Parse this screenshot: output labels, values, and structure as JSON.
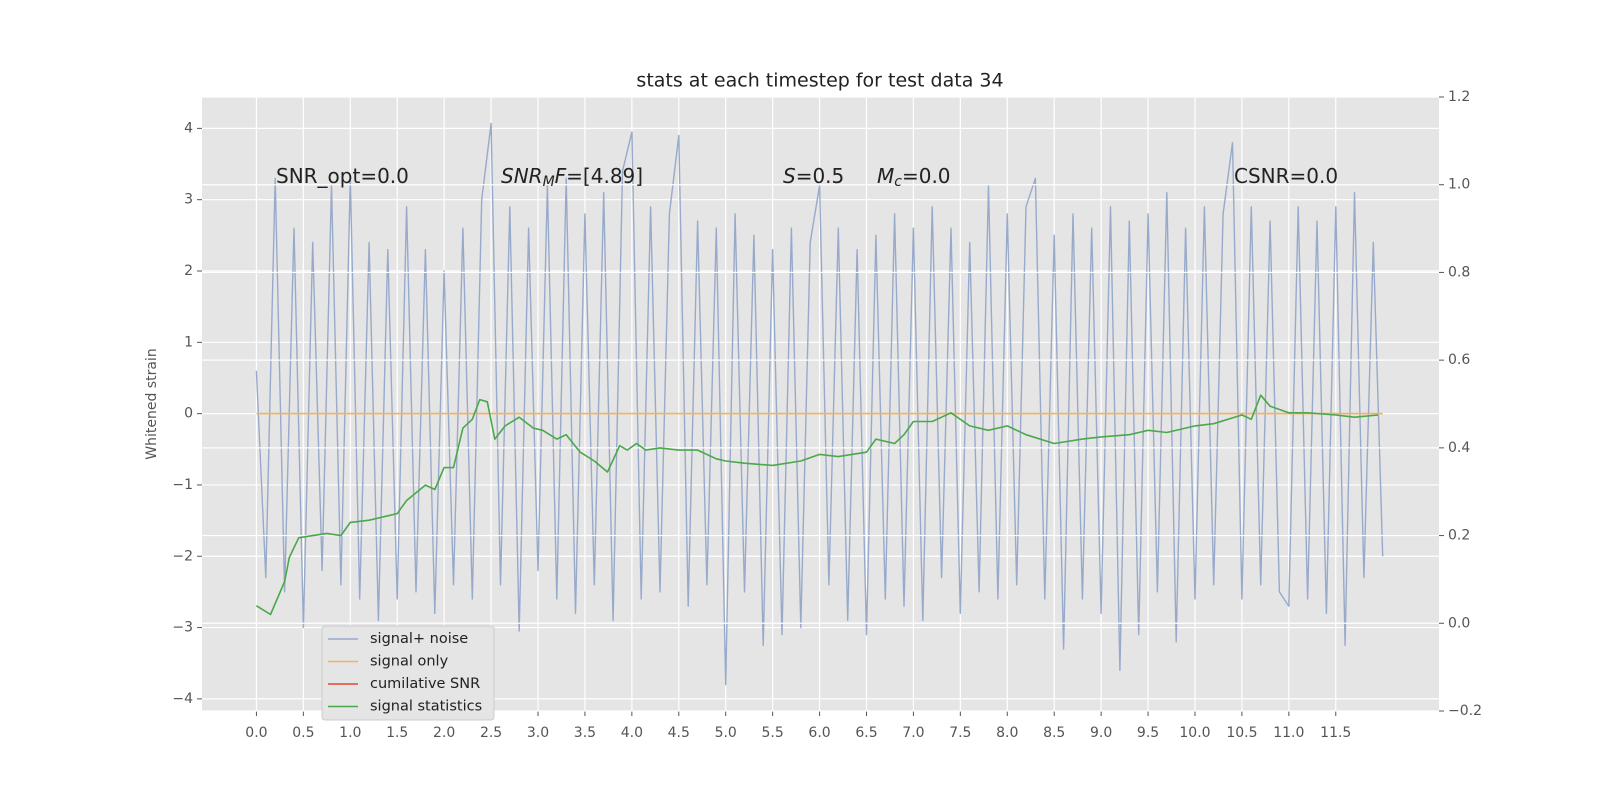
{
  "chart_data": {
    "type": "line",
    "title": "stats at each timestep for test data 34",
    "y_label": "Whitened strain",
    "xlim": [
      -0.58,
      12.6
    ],
    "ylim": [
      -4.17,
      4.44
    ],
    "y2lim": [
      -0.2,
      1.2
    ],
    "xticks": [
      {
        "value": 0,
        "label": "0.0"
      },
      0.5,
      {
        "value": 1,
        "label": "1.0"
      },
      1.5,
      {
        "value": 2,
        "label": "2.0"
      },
      2.5,
      {
        "value": 3,
        "label": "3.0"
      },
      3.5,
      {
        "value": 4,
        "label": "4.0"
      },
      4.5,
      {
        "value": 5,
        "label": "5.0"
      },
      5.5,
      {
        "value": 6,
        "label": "6.0"
      },
      6.5,
      {
        "value": 7,
        "label": "7.0"
      },
      7.5,
      {
        "value": 8,
        "label": "8.0"
      },
      8.5,
      {
        "value": 9,
        "label": "9.0"
      },
      9.5,
      {
        "value": 10,
        "label": "10.0"
      },
      10.5,
      {
        "value": 11,
        "label": "11.0"
      },
      11.5
    ],
    "yticks": [
      {
        "value": -4,
        "label": "−4"
      },
      {
        "value": -3,
        "label": "−3"
      },
      {
        "value": -2,
        "label": "−2"
      },
      {
        "value": -1,
        "label": "−1"
      },
      0,
      1,
      2,
      3,
      4
    ],
    "y2ticks": [
      {
        "value": -0.2,
        "label": "−0.2"
      },
      {
        "value": 0,
        "label": "0.0"
      },
      0.2,
      0.4,
      0.6,
      0.8,
      {
        "value": 1,
        "label": "1.0"
      },
      1.2
    ],
    "grid": true,
    "legend": "lower left",
    "annotations": [
      [
        {
          "text": "SNR_opt=0.0",
          "style": "normal"
        }
      ],
      [
        {
          "text": "SNR",
          "style": "italic"
        },
        {
          "text": "M",
          "style": "sub"
        },
        {
          "text": "F",
          "style": "italic"
        },
        {
          "text": "=[4.89]",
          "style": "normal"
        }
      ],
      [
        {
          "text": "S",
          "style": "italic"
        },
        {
          "text": "=0.5",
          "style": "normal"
        }
      ],
      [
        {
          "text": "M",
          "style": "italic"
        },
        {
          "text": "c",
          "style": "sub"
        },
        {
          "text": "=0.0",
          "style": "normal"
        }
      ],
      [
        {
          "text": "CSNR=0.0",
          "style": "normal"
        }
      ]
    ],
    "series": [
      {
        "name": "signal+ noise",
        "color": "#98aacb",
        "x": [
          0,
          0.1,
          0.2,
          0.3,
          0.4,
          0.5,
          0.6,
          0.7,
          0.8,
          0.9,
          1,
          1.1,
          1.2,
          1.3,
          1.4,
          1.5,
          1.6,
          1.7,
          1.8,
          1.9,
          2,
          2.1,
          2.2,
          2.3,
          2.4,
          2.5,
          2.6,
          2.7,
          2.8,
          2.9,
          3,
          3.1,
          3.2,
          3.3,
          3.4,
          3.5,
          3.6,
          3.7,
          3.8,
          3.9,
          4,
          4.1,
          4.2,
          4.3,
          4.4,
          4.5,
          4.6,
          4.7,
          4.8,
          4.9,
          5,
          5.1,
          5.2,
          5.3,
          5.4,
          5.5,
          5.6,
          5.7,
          5.8,
          5.9,
          6,
          6.1,
          6.2,
          6.3,
          6.4,
          6.5,
          6.6,
          6.7,
          6.8,
          6.9,
          7,
          7.1,
          7.2,
          7.3,
          7.4,
          7.5,
          7.6,
          7.7,
          7.8,
          7.9,
          8,
          8.1,
          8.2,
          8.3,
          8.4,
          8.5,
          8.6,
          8.7,
          8.8,
          8.9,
          9,
          9.1,
          9.2,
          9.3,
          9.4,
          9.5,
          9.6,
          9.7,
          9.8,
          9.9,
          10,
          10.1,
          10.2,
          10.3,
          10.4,
          10.5,
          10.6,
          10.7,
          10.8,
          10.9,
          11,
          11.1,
          11.2,
          11.3,
          11.4,
          11.5,
          11.6,
          11.7,
          11.8,
          11.9,
          12
        ],
        "values": [
          0.6,
          -2.3,
          3.3,
          -2.5,
          2.6,
          -3.0,
          2.4,
          -2.2,
          3.2,
          -2.4,
          3.3,
          -2.6,
          2.4,
          -2.9,
          2.3,
          -2.6,
          2.9,
          -2.5,
          2.3,
          -2.8,
          2.0,
          -2.4,
          2.6,
          -2.6,
          3.0,
          4.07,
          -2.4,
          2.9,
          -3.05,
          2.6,
          -2.2,
          3.2,
          -2.6,
          3.3,
          -2.8,
          2.8,
          -2.4,
          3.1,
          -2.9,
          3.4,
          3.95,
          -2.6,
          2.9,
          -2.5,
          2.8,
          3.9,
          -2.7,
          2.7,
          -2.4,
          2.6,
          -3.8,
          2.8,
          -2.5,
          2.5,
          -3.25,
          2.3,
          -3.1,
          2.6,
          -3.0,
          2.4,
          3.2,
          -2.4,
          2.6,
          -2.9,
          2.3,
          -3.1,
          2.5,
          -2.6,
          2.8,
          -2.7,
          2.6,
          -2.9,
          2.9,
          -2.3,
          2.6,
          -2.8,
          2.4,
          -2.5,
          3.2,
          -2.6,
          2.8,
          -2.4,
          2.9,
          3.3,
          -2.6,
          2.5,
          -3.3,
          2.8,
          -2.6,
          2.6,
          -2.8,
          2.9,
          -3.6,
          2.7,
          -3.1,
          2.8,
          -2.5,
          3.1,
          -3.2,
          2.6,
          -2.6,
          2.9,
          -2.4,
          2.8,
          3.8,
          -2.6,
          2.9,
          -2.4,
          2.7,
          -2.5,
          -2.7,
          2.9,
          -2.6,
          2.7,
          -2.8,
          2.9,
          -3.25,
          3.1,
          -2.3,
          2.4,
          -2.0
        ]
      },
      {
        "name": "signal only",
        "color": "#f0b45a",
        "x": [
          0,
          12
        ],
        "values": [
          0,
          0
        ]
      },
      {
        "name": "cumilative SNR",
        "color": "#e24a33",
        "x": [],
        "values": []
      },
      {
        "name": "signal statistics",
        "color": "#4aa84a",
        "axis": "y2",
        "x": [
          0,
          0.15,
          0.3,
          0.35,
          0.45,
          0.6,
          0.75,
          0.9,
          1.0,
          1.2,
          1.4,
          1.5,
          1.6,
          1.8,
          1.9,
          2.0,
          2.1,
          2.2,
          2.3,
          2.38,
          2.46,
          2.54,
          2.65,
          2.8,
          2.95,
          3.05,
          3.2,
          3.3,
          3.45,
          3.6,
          3.74,
          3.87,
          3.95,
          4.05,
          4.15,
          4.3,
          4.5,
          4.7,
          4.9,
          5.0,
          5.2,
          5.5,
          5.8,
          6.0,
          6.2,
          6.5,
          6.6,
          6.8,
          6.9,
          7.0,
          7.2,
          7.4,
          7.6,
          7.8,
          8.0,
          8.2,
          8.5,
          8.8,
          9.0,
          9.3,
          9.5,
          9.7,
          10.0,
          10.2,
          10.5,
          10.6,
          10.7,
          10.8,
          11.0,
          11.2,
          11.5,
          11.7,
          11.95
        ],
        "values": [
          0.04,
          0.02,
          0.095,
          0.15,
          0.195,
          0.2,
          0.205,
          0.2,
          0.23,
          0.235,
          0.245,
          0.25,
          0.28,
          0.315,
          0.305,
          0.355,
          0.355,
          0.445,
          0.465,
          0.51,
          0.505,
          0.42,
          0.45,
          0.47,
          0.445,
          0.44,
          0.42,
          0.43,
          0.39,
          0.37,
          0.345,
          0.405,
          0.395,
          0.41,
          0.395,
          0.4,
          0.395,
          0.395,
          0.375,
          0.37,
          0.365,
          0.36,
          0.37,
          0.385,
          0.38,
          0.39,
          0.42,
          0.41,
          0.43,
          0.46,
          0.46,
          0.48,
          0.45,
          0.44,
          0.45,
          0.43,
          0.41,
          0.42,
          0.425,
          0.43,
          0.44,
          0.435,
          0.45,
          0.455,
          0.475,
          0.465,
          0.52,
          0.495,
          0.48,
          0.48,
          0.475,
          0.47,
          0.475
        ]
      }
    ]
  }
}
